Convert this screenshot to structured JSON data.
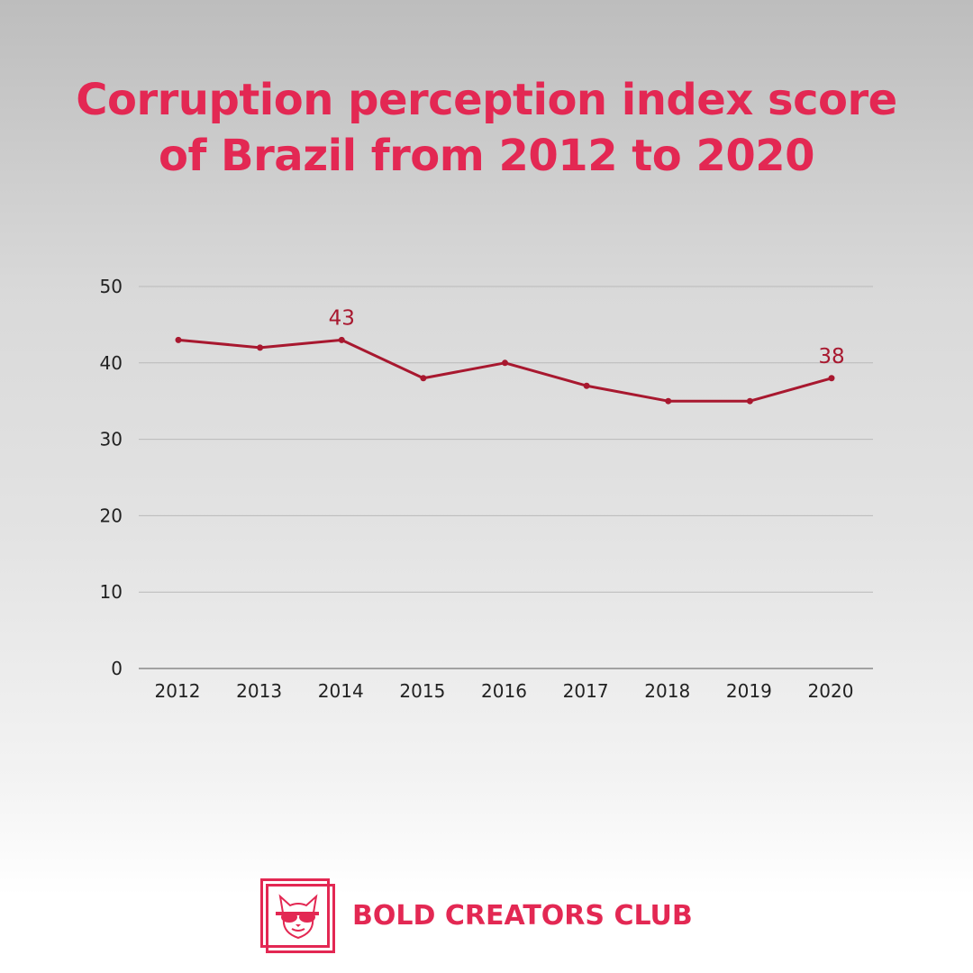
{
  "title_lines": [
    "Corruption perception index score",
    "of Brazil from 2012 to 2020"
  ],
  "brand": {
    "name": "BOLD CREATORS CLUB",
    "logo_icon": "french-bulldog-with-sunglasses-icon",
    "accent_color": "#e32853"
  },
  "chart_data": {
    "type": "line",
    "title": "Corruption perception index score of Brazil from 2012 to 2020",
    "xlabel": "",
    "ylabel": "",
    "categories": [
      "2012",
      "2013",
      "2014",
      "2015",
      "2016",
      "2017",
      "2018",
      "2019",
      "2020"
    ],
    "series": [
      {
        "values": [
          43,
          42,
          43,
          38,
          40,
          37,
          35,
          35,
          38
        ],
        "color": "#a8182f"
      }
    ],
    "ylim": [
      0,
      50
    ],
    "yticks": [
      0,
      10,
      20,
      30,
      40,
      50
    ],
    "grid": true,
    "data_labels": [
      {
        "category": "2014",
        "text": "43"
      },
      {
        "category": "2020",
        "text": "38"
      }
    ]
  }
}
